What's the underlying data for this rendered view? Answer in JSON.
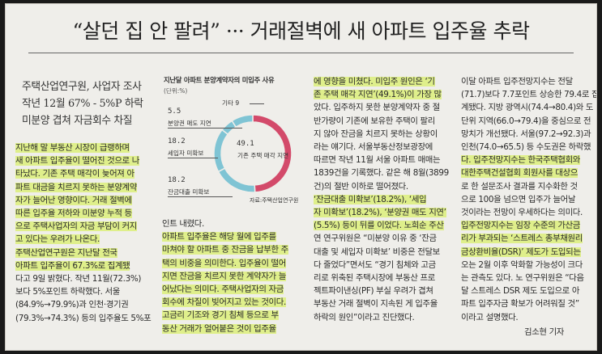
{
  "headline": "“살던 집 안 팔려” ··· 거래절벽에 새 아파트 입주율 추락",
  "subheadline": [
    "주택산업연구원, 사업자 조사",
    "작년 12월 67% - 5%P 하락",
    "미분양 겹쳐 자금회수 차질"
  ],
  "col1": [
    "지난해 말 부동산 시장이 급랭하며",
    "새 아파트 입주율이 떨어진 것으로 나",
    "타났다. 기존 주택 매각이 늦어져 아",
    "파트 대금을 치르지 못하는 분양계약",
    "자가 늘어난 영향이다. 거래 절벽에",
    "따른 입주율 저하와 미분양 누적 등",
    "으로 주택사업자의 자금 부담이 커지",
    "고 있다는 우려가 나온다.",
    "  주택산업연구원은 지난달 전국",
    "아파트 입주율이 67.3%로 집계됐",
    "다고 9일 밝혔다. 작년 11월(72.3%)",
    "보다 5%포인트 하락했다. 서울",
    "(84.9%→79.9%)과 인천·경기권",
    "(79.3%→74.3%) 등의 입주율도 5%포"
  ],
  "col2": [
    "인트 내렸다.",
    "  아파트 입주율은 해당 월에 입주를",
    "마쳐야 할 아파트 중 잔금을 납부한 주",
    "택의 비중을 의미한다. 입주율이 떨어",
    "지면 잔금을 치르지 못한 계약자가 늘",
    "어났다는 의미다. 주택사업자의 자금",
    "회수에 차질이 빚어지고 있는 것이다.",
    "  고금리 기조와 경기 침체 등으로 부",
    "동산 거래가 얼어붙은 것이 입주율"
  ],
  "col3": [
    "에 영향을 미쳤다. 미입주 원인은 ‘기",
    "존 주택 매각 지연’(49.1%)이 가장 많",
    "았다. 입주하지 못한 분양계약자 중 절",
    "반가량이 기존에 보유한 주택이 팔리",
    "지 않아 잔금을 치르지 못하는 상황이",
    "라는 얘기다. 서울부동산정보광장에",
    "따르면 작년 11월 서울 아파트 매매는",
    "1839건을 기록했다. 같은 해 8월(3899",
    "건)의 절반 이하로 떨어졌다.",
    "  ‘잔금대출 미확보’(18.2%), ‘세입",
    "자 미확보’(18.2%), ‘분양권 매도 지연’",
    "(5.5%) 등이 뒤를 이었다. 노희순 주산",
    "연 연구위원은 “미분양 이유 중 ‘잔금",
    "대출 및 세입자 미확보’ 비중은 전달보",
    "다 줄었다”면서도 “경기 침체와 고금",
    "리로 위축된 주택시장에 부동산 프로",
    "젝트파이낸싱(PF) 부실 우려가 겹쳐",
    "부동산 거래 절벽이 지속된 게 입주율",
    "하락의 원인”이라고 진단했다."
  ],
  "col4": [
    "  이달 아파트 입주전망지수는 전달",
    "(71.7)보다 7.7포인트 상승한 79.4로 집",
    "계됐다. 지방 광역시(74.4→80.4)와 도",
    "단위 지역(66.0→79.4)을 중심으로 전",
    "망치가 개선됐다. 서울(97.2→92.3)과",
    "인천(74.0→65.5) 등 수도권은 하락했",
    "다. 입주전망지수는 한국주택협회와",
    "대한주택건설협회 회원사를 대상으",
    "로 한 설문조사 결과를 지수화한 것",
    "으로 100을 넘으면 입주가 늘어날",
    "것이라는 전망이 우세하다는 의미다.",
    "  입주전망지수는 임장 수준의 가산금",
    "리가 부과되는 ‘스트레스 총부채원리",
    "금상환비율(DSR)’ 제도가 도입되는",
    "오는 2월 이후 악화할 가능성이 크다",
    "는 관측도 있다. 노 연구위원은 “다음",
    "달 스트레스 DSR 제도 도입으로 아",
    "파트 입주자금 확보가 어려워질 것”",
    "이라고 설명했다."
  ],
  "byline": "김소현 기자",
  "chart": {
    "title": "지난달 아파트 분양계약자의 미입주 사유",
    "unit": "(단위:%)",
    "source": "자료:주택산업연구원",
    "labels": {
      "other": "기타",
      "presale": "분양권 매도 지연",
      "tenant": "세입자 미확보",
      "existing": "기존 주택 매각 지연",
      "loan": "잔금대출 미확보"
    },
    "values_text": {
      "other": "9",
      "presale": "5.5",
      "tenant": "18.2",
      "existing": "49.1",
      "loan": "18.2"
    },
    "colors": {
      "existing": "#d34a6a",
      "others": "#7fc4d4"
    }
  },
  "chart_data": {
    "type": "pie",
    "title": "지난달 아파트 분양계약자의 미입주 사유",
    "unit": "(단위:%)",
    "categories": [
      "기존 주택 매각 지연",
      "잔금대출 미확보",
      "세입자 미확보",
      "분양권 매도 지연",
      "기타"
    ],
    "values": [
      49.1,
      18.2,
      18.2,
      5.5,
      9
    ]
  }
}
